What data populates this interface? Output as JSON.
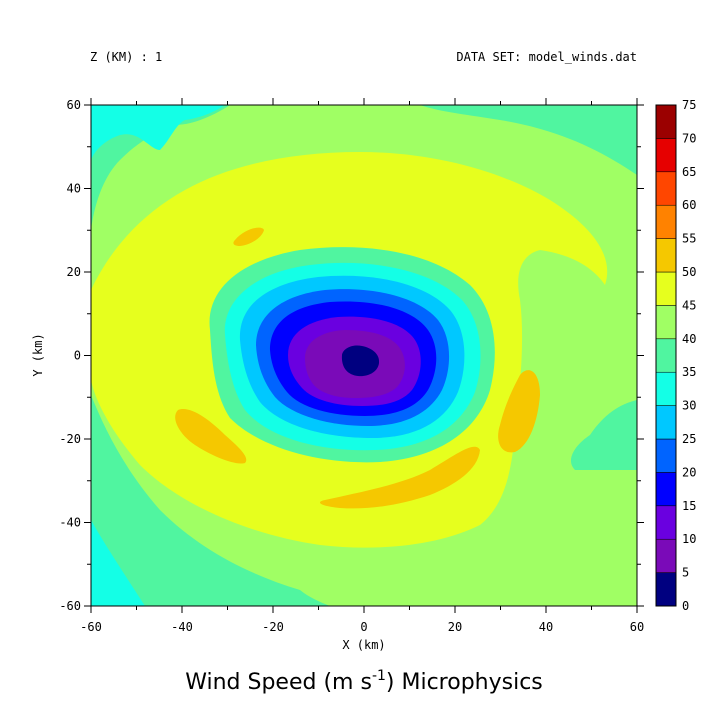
{
  "header": {
    "left_label": "Z (KM) : 1",
    "right_label": "DATA SET: model_winds.dat"
  },
  "chart_data": {
    "type": "heatmap",
    "title_main": "Wind Speed (m s",
    "title_exponent": "-1",
    "title_tail": ") Microphysics",
    "xlabel": "X (km)",
    "ylabel": "Y (km)",
    "xlim": [
      -60,
      60
    ],
    "ylim": [
      -60,
      60
    ],
    "x_ticks": [
      -60,
      -40,
      -20,
      0,
      20,
      40,
      60
    ],
    "y_ticks": [
      -60,
      -40,
      -20,
      0,
      20,
      40,
      60
    ],
    "colorbar": {
      "levels": [
        0,
        5,
        10,
        15,
        20,
        25,
        30,
        35,
        40,
        45,
        50,
        55,
        60,
        65,
        70,
        75
      ],
      "colors": [
        "#000080",
        "#7a0ab8",
        "#6a00e0",
        "#0000ff",
        "#0064ff",
        "#00c8ff",
        "#14ffe6",
        "#50f5a0",
        "#a0ff64",
        "#e6ff1e",
        "#f5c800",
        "#ff8200",
        "#ff4600",
        "#e60000",
        "#9b0000"
      ]
    },
    "center": [
      0,
      0
    ],
    "max_wind_ring": {
      "x": 36,
      "y": -18,
      "value": 52
    }
  }
}
